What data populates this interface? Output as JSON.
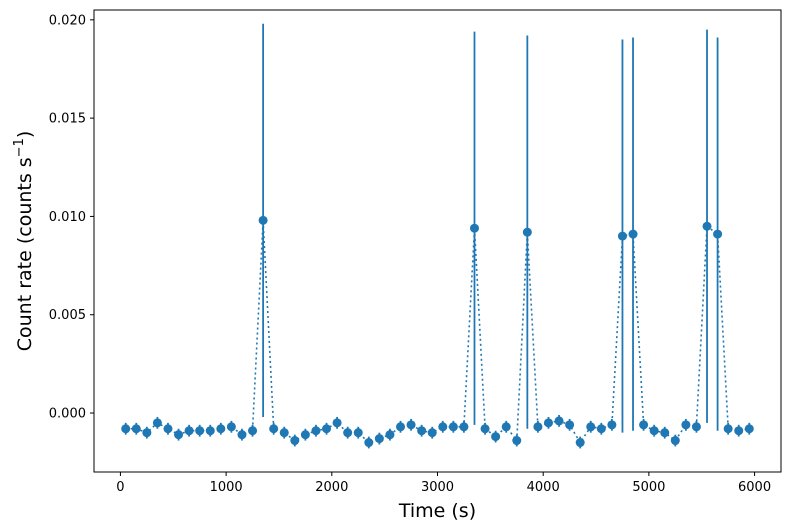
{
  "chart_data": {
    "type": "scatter",
    "title": "",
    "xlabel": "Time (s)",
    "ylabel_main": "Count rate (counts s",
    "ylabel_sup": "−1",
    "ylabel_close": ")",
    "xlim": [
      -250,
      6250
    ],
    "ylim": [
      -0.003,
      0.0205
    ],
    "grid": false,
    "legend": "none",
    "x_ticks": [
      0,
      1000,
      2000,
      3000,
      4000,
      5000,
      6000
    ],
    "x_tick_labels": [
      "0",
      "1000",
      "2000",
      "3000",
      "4000",
      "5000",
      "6000"
    ],
    "y_ticks": [
      0.0,
      0.005,
      0.01,
      0.015,
      0.02
    ],
    "y_tick_labels": [
      "0.000",
      "0.005",
      "0.010",
      "0.015",
      "0.020"
    ],
    "color": "#1f77b4",
    "series": [
      {
        "x": [
          50,
          150,
          250,
          350,
          450,
          550,
          650,
          750,
          850,
          950,
          1050,
          1150,
          1250,
          1350,
          1450,
          1550,
          1650,
          1750,
          1850,
          1950,
          2050,
          2150,
          2250,
          2350,
          2450,
          2550,
          2650,
          2750,
          2850,
          2950,
          3050,
          3150,
          3250,
          3350,
          3450,
          3550,
          3650,
          3750,
          3850,
          3950,
          4050,
          4150,
          4250,
          4350,
          4450,
          4550,
          4650,
          4750,
          4850,
          4950,
          5050,
          5150,
          5250,
          5350,
          5450,
          5550,
          5650,
          5750,
          5850,
          5950
        ],
        "y": [
          -0.0008,
          -0.0008,
          -0.001,
          -0.0005,
          -0.0008,
          -0.0011,
          -0.0009,
          -0.0009,
          -0.0009,
          -0.0008,
          -0.0007,
          -0.0011,
          -0.0009,
          0.0098,
          -0.0008,
          -0.001,
          -0.0014,
          -0.0011,
          -0.0009,
          -0.0008,
          -0.0005,
          -0.001,
          -0.001,
          -0.0015,
          -0.0013,
          -0.0011,
          -0.0007,
          -0.0006,
          -0.0009,
          -0.001,
          -0.0007,
          -0.0007,
          -0.0007,
          0.0094,
          -0.0008,
          -0.0012,
          -0.0007,
          -0.0014,
          0.0092,
          -0.0007,
          -0.0005,
          -0.0004,
          -0.0006,
          -0.0015,
          -0.0007,
          -0.0008,
          -0.0006,
          0.009,
          0.0091,
          -0.0006,
          -0.0009,
          -0.001,
          -0.0014,
          -0.0006,
          -0.0007,
          0.0095,
          0.0091,
          -0.0008,
          -0.0009,
          -0.0008
        ],
        "yerr": [
          0.0003,
          0.0003,
          0.0003,
          0.0003,
          0.0003,
          0.0003,
          0.0003,
          0.0003,
          0.0003,
          0.0003,
          0.0003,
          0.0003,
          0.0003,
          0.01,
          0.0003,
          0.0003,
          0.0003,
          0.0003,
          0.0003,
          0.0003,
          0.0003,
          0.0003,
          0.0003,
          0.0003,
          0.0003,
          0.0003,
          0.0003,
          0.0003,
          0.0003,
          0.0003,
          0.0003,
          0.0003,
          0.0003,
          0.01,
          0.0003,
          0.0003,
          0.0003,
          0.0003,
          0.01,
          0.0003,
          0.0003,
          0.0003,
          0.0003,
          0.0003,
          0.0003,
          0.0003,
          0.0003,
          0.01,
          0.01,
          0.0003,
          0.0003,
          0.0003,
          0.0003,
          0.0003,
          0.0003,
          0.01,
          0.01,
          0.0003,
          0.0003,
          0.0003
        ]
      }
    ]
  }
}
